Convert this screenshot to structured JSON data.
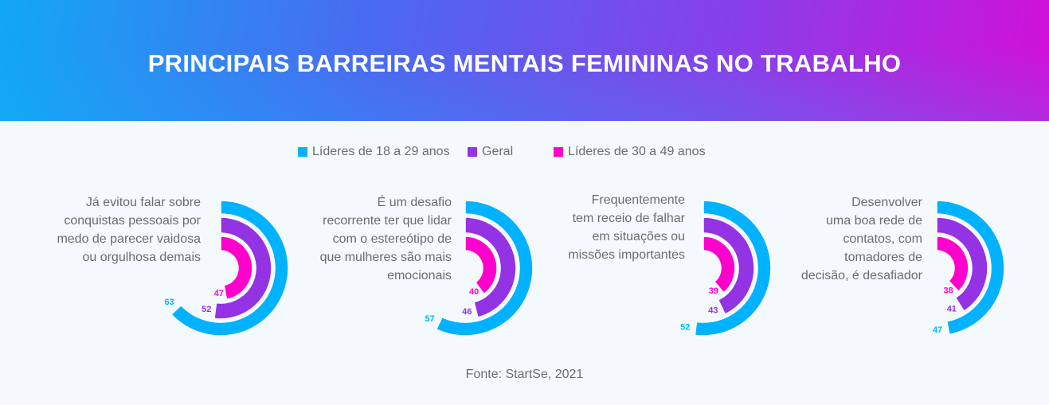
{
  "title": "PRINCIPAIS BARREIRAS MENTAIS FEMININAS NO TRABALHO",
  "source": "Fonte: StartSe, 2021",
  "chart_data": {
    "type": "radial-bar",
    "title": "PRINCIPAIS BARREIRAS MENTAIS FEMININAS NO TRABALHO",
    "unit": "%",
    "scale_max": 100,
    "legend_position": "top",
    "series": [
      {
        "name": "Líderes de 18 a 29 anos",
        "color": "#00b2ff",
        "values": [
          63,
          57,
          52,
          47
        ]
      },
      {
        "name": "Geral",
        "color": "#9333e3",
        "values": [
          52,
          46,
          43,
          41
        ]
      },
      {
        "name": "Líderes de 30 a 49 anos",
        "color": "#ff00cc",
        "values": [
          47,
          40,
          39,
          38
        ]
      }
    ],
    "categories": [
      "Já evitou falar sobre conquistas pessoais por medo de parecer vaidosa ou orgulhosa demais",
      "É um desafio recorrente ter que lidar com o estereótipo de que mulheres são mais emocionais",
      "Frequentemente tem receio de falhar em situações ou missões importantes",
      "Desenvolver uma boa rede de contatos, com tomadores de decisão, é desafiador"
    ],
    "category_lines": [
      [
        "Já evitou falar sobre",
        "conquistas pessoais por",
        "medo de parecer vaidosa",
        "ou orgulhosa demais"
      ],
      [
        "É um desafio",
        "recorrente ter que lidar",
        "com o estereótipo de",
        "que mulheres são mais",
        "emocionais"
      ],
      [
        "Frequentemente",
        "tem receio de falhar",
        "em situações ou",
        "missões importantes"
      ],
      [
        "Desenvolver",
        "uma boa rede de",
        "contatos, com",
        "tomadores de",
        "decisão, é desafiador"
      ]
    ]
  }
}
